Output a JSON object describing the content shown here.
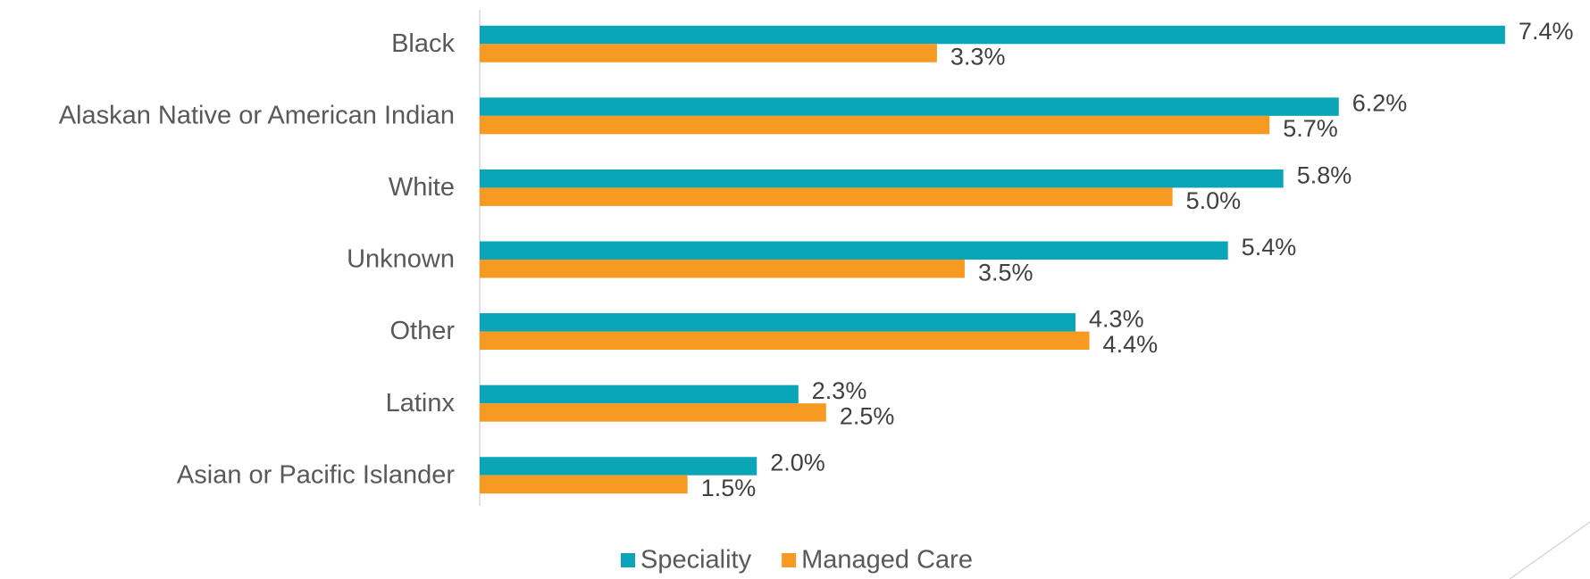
{
  "chart_data": {
    "type": "barh",
    "categories": [
      "Black",
      "Alaskan Native or American Indian",
      "White",
      "Unknown",
      "Other",
      "Latinx",
      "Asian or Pacific Islander"
    ],
    "series": [
      {
        "name": "Speciality",
        "color": "#0aa6b8",
        "values": [
          7.4,
          6.2,
          5.8,
          5.4,
          4.3,
          2.3,
          2.0
        ],
        "value_labels": [
          "7.4%",
          "6.2%",
          "5.8%",
          "5.4%",
          "4.3%",
          "2.3%",
          "2.0%"
        ]
      },
      {
        "name": "Managed Care",
        "color": "#f79a22",
        "values": [
          3.3,
          5.7,
          5.0,
          3.5,
          4.4,
          2.5,
          1.5
        ],
        "value_labels": [
          "3.3%",
          "5.7%",
          "5.0%",
          "3.5%",
          "4.4%",
          "2.5%",
          "1.5%"
        ]
      }
    ],
    "xlim": [
      0,
      8
    ],
    "legend": "bottom"
  }
}
